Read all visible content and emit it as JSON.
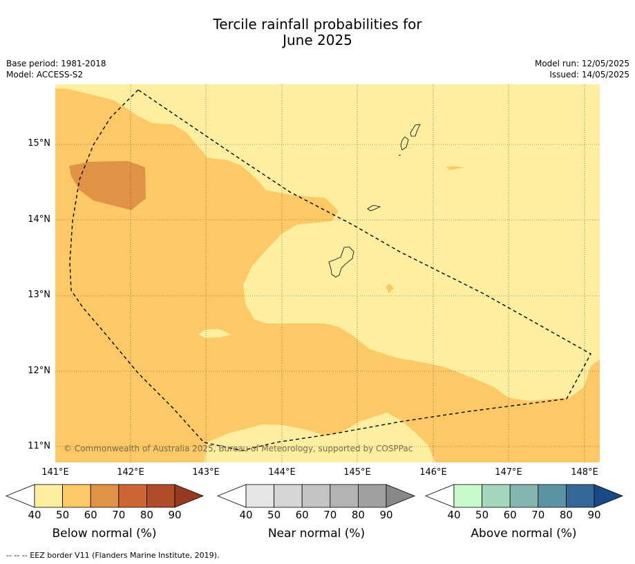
{
  "title_line1": "Tercile rainfall probabilities for",
  "title_line2": "June 2025",
  "base_period": "Base period: 1981-2018",
  "model": "Model: ACCESS-S2",
  "model_run": "Model run: 12/05/2025",
  "issued": "Issued: 14/05/2025",
  "lat_labels": [
    "15°N",
    "14°N",
    "13°N",
    "12°N",
    "11°N"
  ],
  "lon_labels": [
    "141°E",
    "142°E",
    "143°E",
    "144°E",
    "145°E",
    "146°E",
    "147°E",
    "148°E"
  ],
  "copyright": "© Commonwealth of Australia 2025, Bureau of Meteorology, supported by COSPPac",
  "colorbars": [
    {
      "label": "Below normal (%)",
      "ticks": [
        "40",
        "50",
        "60",
        "70",
        "80",
        "90"
      ],
      "colors": [
        "#ffffff",
        "#feeea0",
        "#fdc966",
        "#e09245",
        "#cd6534",
        "#b24d29",
        "#963a21"
      ]
    },
    {
      "label": "Near normal (%)",
      "ticks": [
        "40",
        "50",
        "60",
        "70",
        "80",
        "90"
      ],
      "colors": [
        "#ffffff",
        "#e5e5e5",
        "#d5d5d5",
        "#c4c4c4",
        "#b3b3b3",
        "#a0a0a0",
        "#888888"
      ]
    },
    {
      "label": "Above normal (%)",
      "ticks": [
        "40",
        "50",
        "60",
        "70",
        "80",
        "90"
      ],
      "colors": [
        "#ffffff",
        "#c8f9cc",
        "#a4d6bb",
        "#84b5b0",
        "#5a93a2",
        "#346898",
        "#1a4a85"
      ]
    }
  ],
  "footnote": "--  --  -- EEZ border V11 (Flanders Marine Institute, 2019)."
}
